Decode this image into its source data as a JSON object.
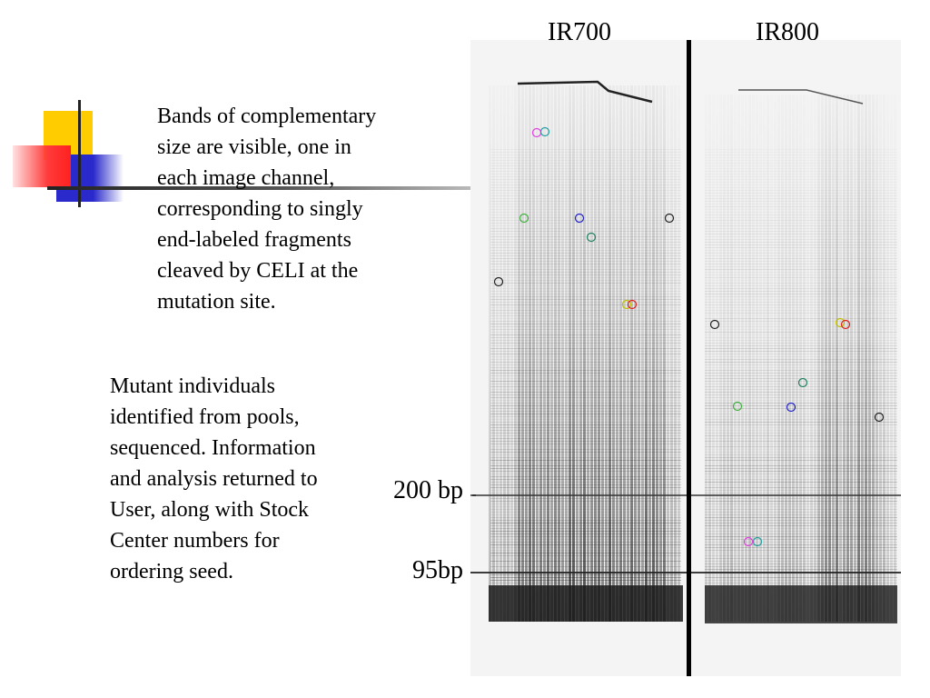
{
  "slide": {
    "colors": {
      "yellow": "#ffcc00",
      "red": "#ff3b3b",
      "blue": "#2a2acc",
      "rule": "#222222"
    },
    "paragraph_1": [
      "Bands of complementary",
      "size are visible, one in",
      "each image channel,",
      "corresponding to singly",
      "end-labeled fragments",
      "cleaved by CELI at the",
      "mutation site."
    ],
    "paragraph_2": [
      "Mutant individuals",
      "identified from pools,",
      "sequenced.  Information",
      "and analysis returned to",
      "User, along with Stock",
      "Center numbers for",
      "ordering seed."
    ]
  },
  "gel": {
    "channel_labels": [
      "IR700",
      "IR800"
    ],
    "markers": [
      {
        "label": "200 bp"
      },
      {
        "label": "95bp"
      }
    ],
    "circle_colors": [
      "#e040e0",
      "#20a0a0",
      "#40b040",
      "#2020cc",
      "#208060",
      "#222222",
      "#e02020",
      "#c0c000"
    ]
  }
}
